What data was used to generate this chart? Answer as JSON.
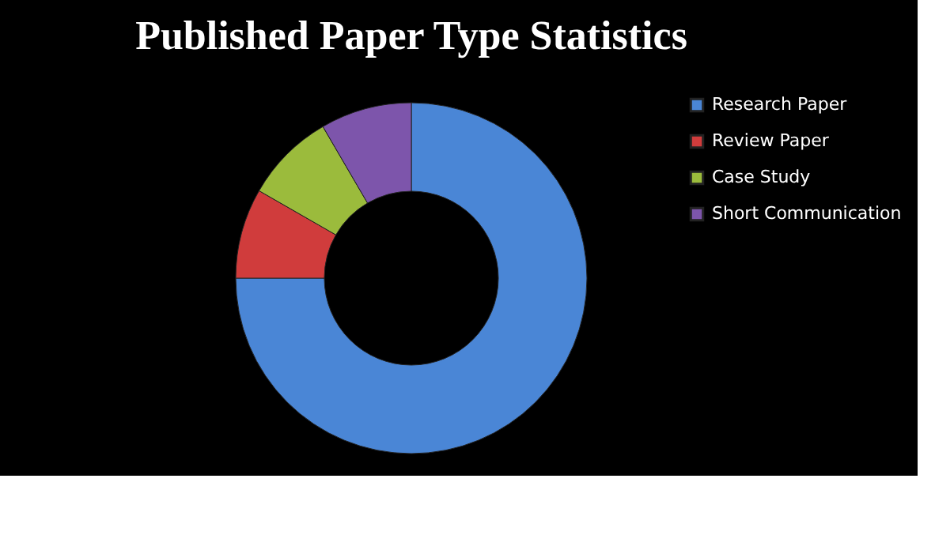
{
  "chart_data": {
    "type": "donut",
    "title": "Published Paper Type Statistics",
    "categories": [
      "Research Paper",
      "Review Paper",
      "Case Study",
      "Short Communication"
    ],
    "values": [
      75,
      8.3,
      8.3,
      8.4
    ],
    "colors": [
      "#4a86d6",
      "#d03c3c",
      "#9bbb3c",
      "#7d55ab"
    ],
    "legend": "right"
  }
}
